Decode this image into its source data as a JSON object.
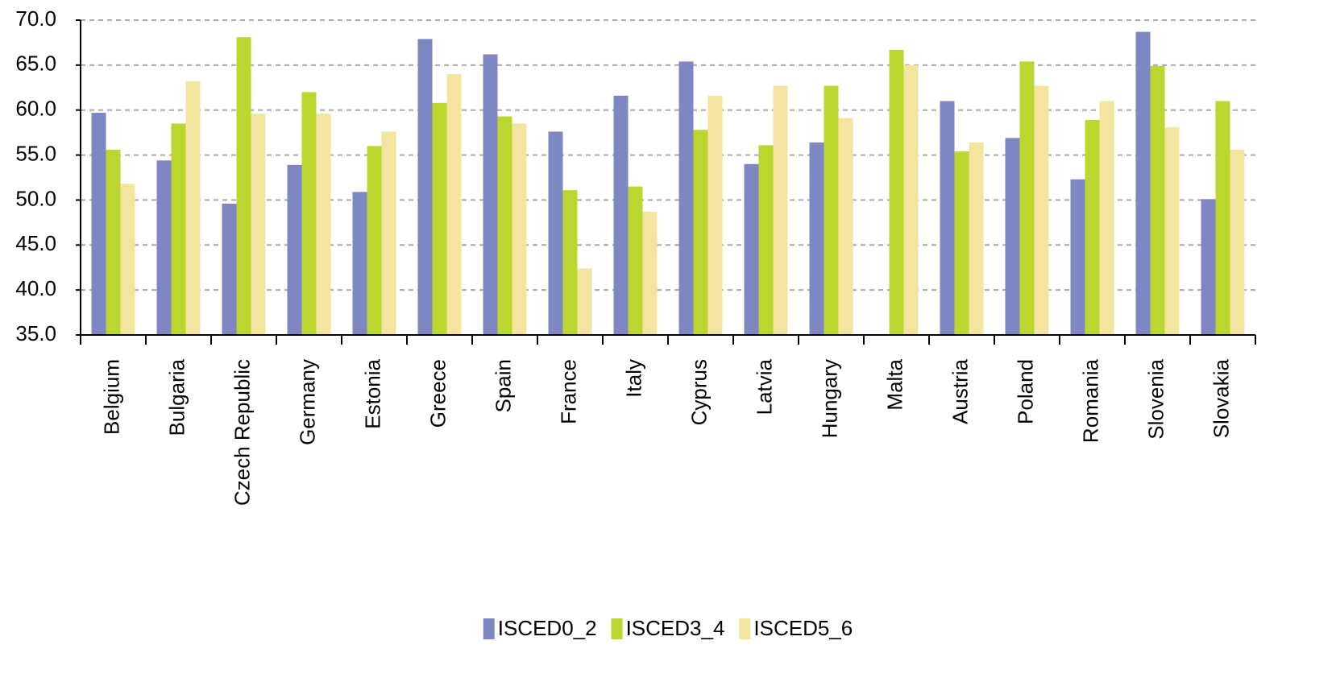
{
  "chart_data": {
    "type": "bar",
    "categories": [
      "Belgium",
      "Bulgaria",
      "Czech Republic",
      "Germany",
      "Estonia",
      "Greece",
      "Spain",
      "France",
      "Italy",
      "Cyprus",
      "Latvia",
      "Hungary",
      "Malta",
      "Austria",
      "Poland",
      "Romania",
      "Slovenia",
      "Slovakia"
    ],
    "series": [
      {
        "name": "ISCED0_2",
        "color": "#7f87c3",
        "values": [
          59.7,
          54.4,
          49.6,
          53.9,
          50.9,
          67.9,
          66.2,
          57.6,
          61.6,
          65.4,
          54.0,
          56.4,
          null,
          61.0,
          56.9,
          52.3,
          68.7,
          50.1
        ]
      },
      {
        "name": "ISCED3_4",
        "color": "#bcd630",
        "values": [
          55.6,
          58.5,
          68.1,
          62.0,
          56.0,
          60.8,
          59.3,
          51.1,
          51.5,
          57.8,
          56.1,
          62.7,
          66.7,
          55.4,
          65.4,
          58.9,
          64.9,
          61.0
        ]
      },
      {
        "name": "ISCED5_6",
        "color": "#f3e4a0",
        "values": [
          51.8,
          63.2,
          59.6,
          59.6,
          57.6,
          64.0,
          58.5,
          42.4,
          48.7,
          61.6,
          62.7,
          59.1,
          65.0,
          56.4,
          62.7,
          61.0,
          58.1,
          55.6
        ]
      }
    ],
    "ylim": [
      35,
      70
    ],
    "yticks": [
      {
        "value": 35,
        "label": "35.0"
      },
      {
        "value": 40,
        "label": "40.0"
      },
      {
        "value": 45,
        "label": "45.0"
      },
      {
        "value": 50,
        "label": "50.0"
      },
      {
        "value": 55,
        "label": "55.0"
      },
      {
        "value": 60,
        "label": "60.0"
      },
      {
        "value": 65,
        "label": "65.0"
      },
      {
        "value": 70,
        "label": "70.0"
      }
    ],
    "grid": true,
    "legend": "bottom"
  }
}
